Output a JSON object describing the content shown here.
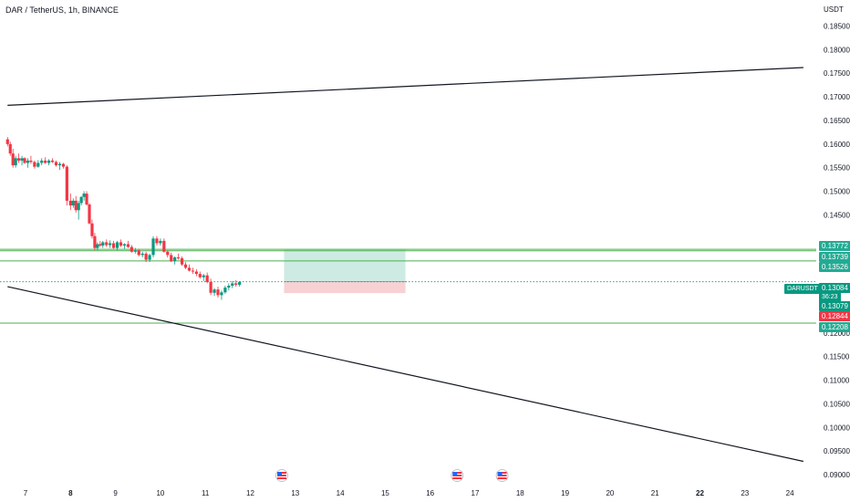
{
  "header": {
    "symbol_title": "DAR / TetherUS, 1h, BINANCE",
    "currency": "USDT"
  },
  "price_axis": {
    "ticks": [
      "0.18500",
      "0.18000",
      "0.17500",
      "0.17000",
      "0.16500",
      "0.16000",
      "0.15500",
      "0.15000",
      "0.14500",
      "0.12000",
      "0.11500",
      "0.11000",
      "0.10500",
      "0.10000",
      "0.09500",
      "0.09000"
    ]
  },
  "time_axis": {
    "ticks": [
      "7",
      "8",
      "9",
      "10",
      "11",
      "12",
      "13",
      "14",
      "15",
      "16",
      "17",
      "18",
      "19",
      "20",
      "21",
      "22",
      "23",
      "24"
    ]
  },
  "price_tags": [
    {
      "label": "0.13772",
      "color": "#22ab94"
    },
    {
      "label": "0.13739",
      "color": "#22ab94"
    },
    {
      "label": "0.13526",
      "color": "#22ab94"
    },
    {
      "label": "0.13084",
      "color": "#089981"
    },
    {
      "label": "0.13079",
      "color": "#089981"
    },
    {
      "label": "0.12844",
      "color": "#f23645"
    },
    {
      "label": "0.12208",
      "color": "#22ab94"
    }
  ],
  "ticker": {
    "name": "DARUSDT",
    "countdown": "36:23"
  },
  "icons": [
    "us-flag-icon",
    "us-flag-icon",
    "us-flag-icon"
  ],
  "colors": {
    "up": "#089981",
    "down": "#f23645",
    "hline": "#4caf50",
    "profit_zone": "#cdebe3",
    "loss_zone": "#f7d1d4",
    "trend": "#131722"
  },
  "chart_data": {
    "type": "candlestick",
    "title": "DAR / TetherUS, 1h, BINANCE",
    "ylim": [
      0.09,
      0.1875
    ],
    "x_range": [
      6.6,
      24.3
    ],
    "horizontal_levels": [
      0.13772,
      0.13739,
      0.13526,
      0.12208
    ],
    "current_price": 0.13084,
    "position": {
      "entry": 0.13084,
      "target": 0.13772,
      "stop": 0.12844,
      "start_day": 12.75,
      "end_day": 15.45
    },
    "trendlines": [
      {
        "from": [
          6.6,
          0.1682
        ],
        "to": [
          24.3,
          0.1762
        ]
      },
      {
        "from": [
          6.6,
          0.1298
        ],
        "to": [
          24.3,
          0.0928
        ]
      }
    ],
    "ohlc": [
      [
        6.6,
        0.161,
        0.1615,
        0.1595,
        0.16
      ],
      [
        6.66,
        0.16,
        0.1605,
        0.1575,
        0.158
      ],
      [
        6.72,
        0.158,
        0.159,
        0.155,
        0.1555
      ],
      [
        6.78,
        0.1555,
        0.1575,
        0.155,
        0.157
      ],
      [
        6.85,
        0.157,
        0.158,
        0.156,
        0.1565
      ],
      [
        6.92,
        0.1565,
        0.1575,
        0.1555,
        0.157
      ],
      [
        6.98,
        0.157,
        0.1572,
        0.1558,
        0.156
      ],
      [
        7.05,
        0.156,
        0.157,
        0.155,
        0.1565
      ],
      [
        7.12,
        0.1565,
        0.1575,
        0.1558,
        0.1562
      ],
      [
        7.2,
        0.1562,
        0.1565,
        0.1548,
        0.1552
      ],
      [
        7.28,
        0.1552,
        0.1566,
        0.155,
        0.156
      ],
      [
        7.36,
        0.156,
        0.157,
        0.1555,
        0.1565
      ],
      [
        7.44,
        0.1565,
        0.1572,
        0.1558,
        0.156
      ],
      [
        7.52,
        0.156,
        0.1568,
        0.1555,
        0.1565
      ],
      [
        7.6,
        0.1565,
        0.157,
        0.156,
        0.1562
      ],
      [
        7.68,
        0.1562,
        0.1565,
        0.1552,
        0.1555
      ],
      [
        7.76,
        0.1555,
        0.1562,
        0.1545,
        0.1558
      ],
      [
        7.84,
        0.1558,
        0.156,
        0.1548,
        0.1552
      ],
      [
        7.92,
        0.1552,
        0.1555,
        0.147,
        0.148
      ],
      [
        8.0,
        0.148,
        0.1495,
        0.146,
        0.147
      ],
      [
        8.06,
        0.147,
        0.1485,
        0.1465,
        0.148
      ],
      [
        8.12,
        0.148,
        0.149,
        0.1455,
        0.146
      ],
      [
        8.18,
        0.146,
        0.148,
        0.144,
        0.1475
      ],
      [
        8.24,
        0.1475,
        0.149,
        0.147,
        0.1488
      ],
      [
        8.3,
        0.1488,
        0.15,
        0.148,
        0.1495
      ],
      [
        8.36,
        0.1495,
        0.15,
        0.147,
        0.1472
      ],
      [
        8.42,
        0.1472,
        0.1475,
        0.143,
        0.1432
      ],
      [
        8.48,
        0.1432,
        0.144,
        0.14,
        0.1405
      ],
      [
        8.54,
        0.1405,
        0.1412,
        0.1375,
        0.138
      ],
      [
        8.6,
        0.138,
        0.1392,
        0.1375,
        0.1388
      ],
      [
        8.66,
        0.1388,
        0.1395,
        0.1382,
        0.1385
      ],
      [
        8.72,
        0.1385,
        0.1395,
        0.138,
        0.1392
      ],
      [
        8.8,
        0.1392,
        0.1398,
        0.1382,
        0.1386
      ],
      [
        8.88,
        0.1386,
        0.1396,
        0.138,
        0.139
      ],
      [
        8.96,
        0.139,
        0.1395,
        0.1378,
        0.138
      ],
      [
        9.04,
        0.138,
        0.1395,
        0.1375,
        0.1392
      ],
      [
        9.12,
        0.1392,
        0.1398,
        0.1382,
        0.1385
      ],
      [
        9.2,
        0.1385,
        0.139,
        0.1378,
        0.1388
      ],
      [
        9.28,
        0.1388,
        0.1395,
        0.138,
        0.1382
      ],
      [
        9.36,
        0.1382,
        0.1386,
        0.137,
        0.1372
      ],
      [
        9.44,
        0.1372,
        0.138,
        0.1368,
        0.1375
      ],
      [
        9.52,
        0.1375,
        0.1378,
        0.1362,
        0.1365
      ],
      [
        9.6,
        0.1365,
        0.1372,
        0.136,
        0.1368
      ],
      [
        9.68,
        0.1368,
        0.1372,
        0.135,
        0.1355
      ],
      [
        9.76,
        0.1355,
        0.1368,
        0.135,
        0.1365
      ],
      [
        9.84,
        0.1365,
        0.1405,
        0.136,
        0.14
      ],
      [
        9.92,
        0.14,
        0.1405,
        0.1385,
        0.139
      ],
      [
        10.0,
        0.139,
        0.14,
        0.1385,
        0.1395
      ],
      [
        10.08,
        0.1395,
        0.14,
        0.137,
        0.1372
      ],
      [
        10.16,
        0.1372,
        0.1375,
        0.136,
        0.1365
      ],
      [
        10.24,
        0.1365,
        0.137,
        0.135,
        0.1352
      ],
      [
        10.32,
        0.1352,
        0.1362,
        0.1345,
        0.136
      ],
      [
        10.4,
        0.136,
        0.1368,
        0.1355,
        0.1358
      ],
      [
        10.48,
        0.1358,
        0.1362,
        0.1342,
        0.1345
      ],
      [
        10.56,
        0.1345,
        0.135,
        0.1335,
        0.1338
      ],
      [
        10.64,
        0.1338,
        0.1345,
        0.133,
        0.1332
      ],
      [
        10.72,
        0.1332,
        0.1338,
        0.1325,
        0.133
      ],
      [
        10.8,
        0.133,
        0.1335,
        0.132,
        0.1325
      ],
      [
        10.88,
        0.1325,
        0.133,
        0.1315,
        0.1318
      ],
      [
        10.96,
        0.1318,
        0.1325,
        0.131,
        0.1322
      ],
      [
        11.04,
        0.1322,
        0.1328,
        0.1305,
        0.1308
      ],
      [
        11.12,
        0.1308,
        0.1315,
        0.128,
        0.1285
      ],
      [
        11.2,
        0.1285,
        0.1295,
        0.1278,
        0.1292
      ],
      [
        11.28,
        0.1292,
        0.1298,
        0.1275,
        0.128
      ],
      [
        11.36,
        0.128,
        0.129,
        0.127,
        0.1286
      ],
      [
        11.44,
        0.1286,
        0.13,
        0.1283,
        0.1296
      ],
      [
        11.52,
        0.1296,
        0.1305,
        0.129,
        0.13
      ],
      [
        11.6,
        0.13,
        0.131,
        0.1295,
        0.1305
      ],
      [
        11.68,
        0.1305,
        0.1312,
        0.1298,
        0.1302
      ],
      [
        11.76,
        0.1302,
        0.131,
        0.1298,
        0.1308
      ]
    ]
  }
}
